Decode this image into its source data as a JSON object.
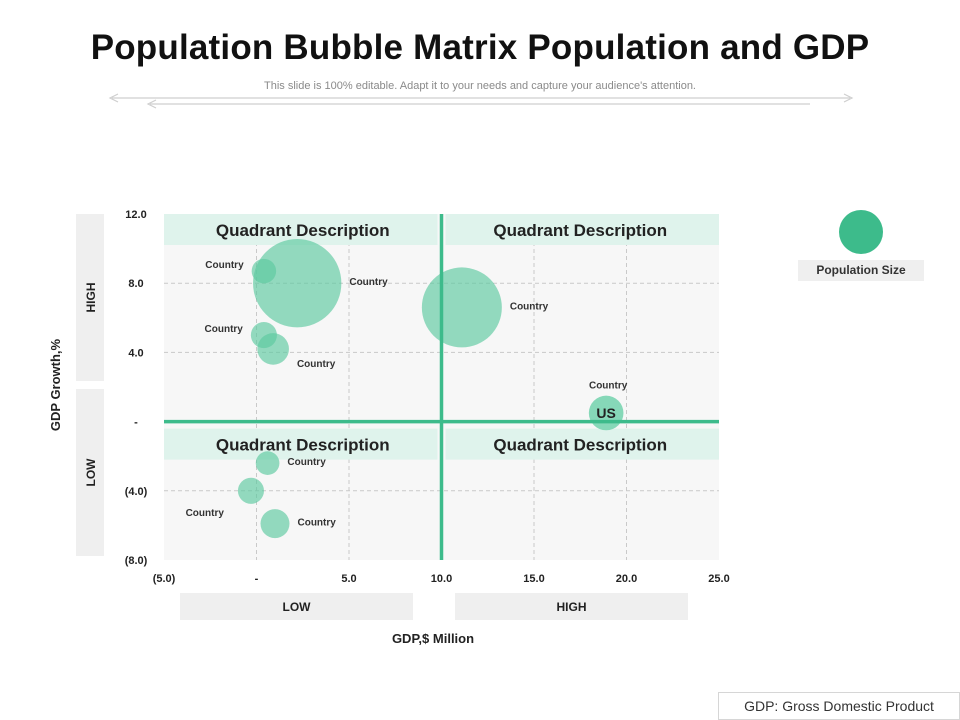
{
  "header": {
    "title": "Population Bubble Matrix Population and GDP",
    "subtitle": "This slide is 100% editable. Adapt it to your needs and capture your audience's attention."
  },
  "legend": {
    "label": "Population Size",
    "color": "#3dbb8b"
  },
  "footnote": "GDP: Gross Domestic Product",
  "colors": {
    "bubble": "#5ccaa0",
    "bubble_us": "#7fd6b4",
    "divider": "#3dbb8b",
    "quadrant_header_bg": "#dff3ec",
    "band_bg": "#efefef",
    "plot_bg": "#f7f7f7",
    "grid": "#c9c9c9"
  },
  "chart_data": {
    "type": "scatter",
    "xlabel": "GDP,$ Million",
    "ylabel": "GDP Growth,%",
    "xlim": [
      -5,
      25
    ],
    "ylim": [
      -8,
      12
    ],
    "x_ticks": [
      {
        "value": -5,
        "label": "(5.0)"
      },
      {
        "value": 0,
        "label": "-"
      },
      {
        "value": 5,
        "label": "5.0"
      },
      {
        "value": 10,
        "label": "10.0"
      },
      {
        "value": 15,
        "label": "15.0"
      },
      {
        "value": 20,
        "label": "20.0"
      },
      {
        "value": 25,
        "label": "25.0"
      }
    ],
    "y_ticks": [
      {
        "value": 12,
        "label": "12.0"
      },
      {
        "value": 8,
        "label": "8.0"
      },
      {
        "value": 4,
        "label": "4.0"
      },
      {
        "value": 0,
        "label": "-"
      },
      {
        "value": -4,
        "label": "(4.0)"
      },
      {
        "value": -8,
        "label": "(8.0)"
      }
    ],
    "x_bands": [
      "LOW",
      "HIGH"
    ],
    "y_bands": [
      "HIGH",
      "LOW"
    ],
    "quadrant_labels": [
      "Quadrant Description",
      "Quadrant Description",
      "Quadrant Description",
      "Quadrant Description"
    ],
    "divider": {
      "x": 10,
      "y": 0
    },
    "grid": true,
    "legend_position": "top-right",
    "points": [
      {
        "label": "Country",
        "x": 0.4,
        "y": 8.7,
        "size": 1.5,
        "label_side": "left"
      },
      {
        "label": "Country",
        "x": 2.2,
        "y": 8.0,
        "size": 19.5,
        "label_side": "right"
      },
      {
        "label": "Country",
        "x": 0.4,
        "y": 5.0,
        "size": 1.7,
        "label_side": "left"
      },
      {
        "label": "Country",
        "x": 0.9,
        "y": 4.2,
        "size": 2.5,
        "label_side": "below-right"
      },
      {
        "label": "Country",
        "x": 11.1,
        "y": 6.6,
        "size": 16.0,
        "label_side": "right"
      },
      {
        "label": "US",
        "x": 18.9,
        "y": 0.5,
        "size": 3.0,
        "label_side": "above",
        "inside_label": "US"
      },
      {
        "label": "Country",
        "x": 0.6,
        "y": -2.4,
        "size": 1.4,
        "label_side": "right"
      },
      {
        "label": "Country",
        "x": -0.3,
        "y": -4.0,
        "size": 1.7,
        "label_side": "below-left"
      },
      {
        "label": "Country",
        "x": 1.0,
        "y": -5.9,
        "size": 2.1,
        "label_side": "right"
      }
    ]
  }
}
